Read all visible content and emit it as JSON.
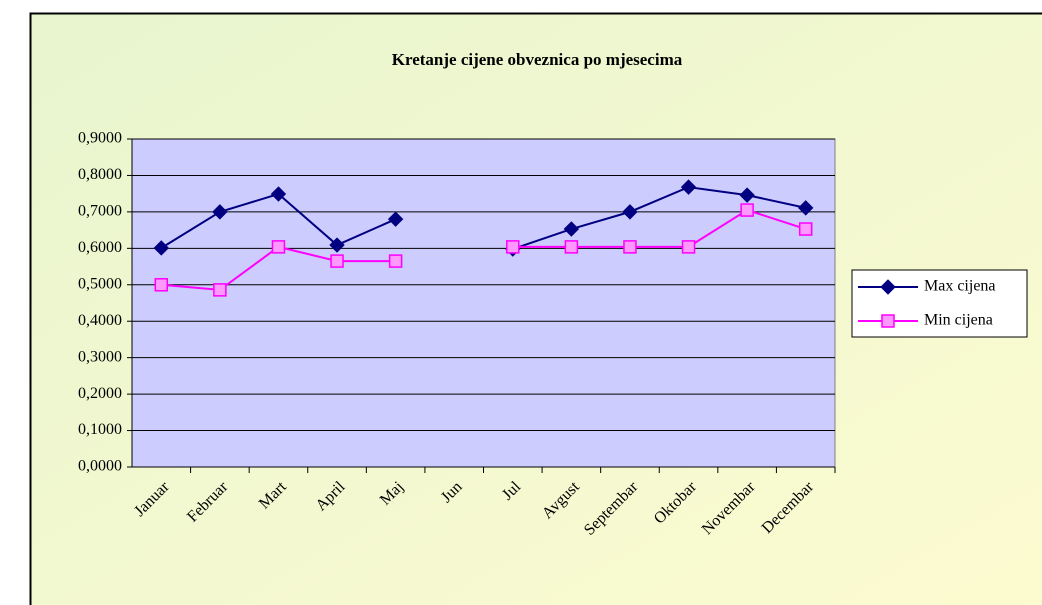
{
  "chart_data": {
    "type": "line",
    "title": "Kretanje cijene obveznica po mjesecima",
    "categories": [
      "Januar",
      "Februar",
      "Mart",
      "April",
      "Maj",
      "Jun",
      "Jul",
      "Avgust",
      "Septembar",
      "Oktobar",
      "Novembar",
      "Decembar"
    ],
    "series": [
      {
        "name": "Max cijena",
        "color": "#000080",
        "values": [
          0.601,
          0.7,
          0.749,
          0.609,
          0.68,
          null,
          0.598,
          0.653,
          0.7,
          0.768,
          0.746,
          0.711
        ]
      },
      {
        "name": "Min cijena",
        "color": "#ff00ff",
        "values": [
          0.5,
          0.486,
          0.604,
          0.565,
          0.565,
          null,
          0.604,
          0.604,
          0.604,
          0.604,
          0.705,
          0.653
        ]
      }
    ],
    "ylim": [
      0,
      0.9
    ],
    "yticks": [
      {
        "value": 0,
        "label": "0,0000"
      },
      {
        "value": 0.1,
        "label": "0,1000"
      },
      {
        "value": 0.2,
        "label": "0,2000"
      },
      {
        "value": 0.3,
        "label": "0,3000"
      },
      {
        "value": 0.4,
        "label": "0,4000"
      },
      {
        "value": 0.5,
        "label": "0,5000"
      },
      {
        "value": 0.6,
        "label": "0,6000"
      },
      {
        "value": 0.7,
        "label": "0,7000"
      },
      {
        "value": 0.8,
        "label": "0,8000"
      },
      {
        "value": 0.9,
        "label": "0,9000"
      }
    ],
    "grid": true,
    "legend": "right"
  }
}
